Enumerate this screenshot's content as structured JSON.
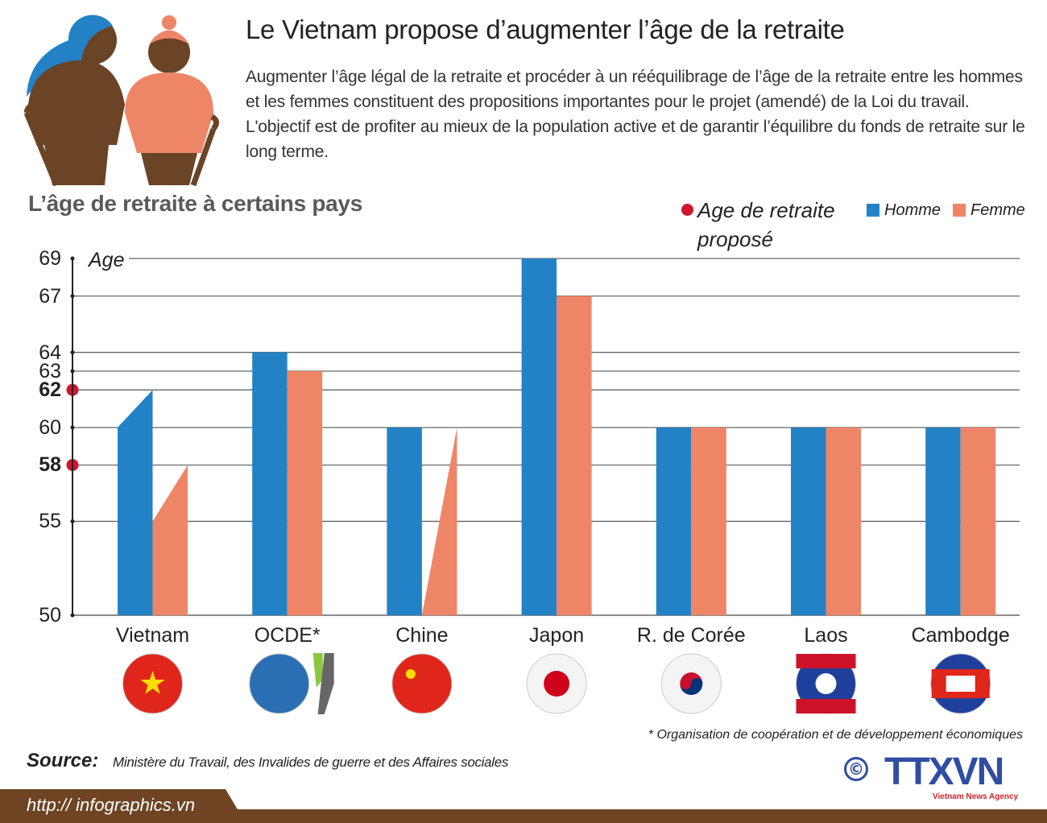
{
  "header": {
    "title": "Le Vietnam propose d’augmenter l’âge de la retraite",
    "intro": "Augmenter l’âge légal de la retraite et procéder à un rééquilibrage de l’âge de la retraite entre les hommes et les femmes constituent des propositions importantes pour le projet (amendé) de la Loi du travail. L'objectif est de profiter au mieux de la population active et de garantir l’équilibre du fonds de retraite sur le long terme."
  },
  "chart_data": {
    "type": "bar",
    "title": "L’âge de retraite à certains pays",
    "ylabel": "Age",
    "ylim": [
      50,
      69
    ],
    "yticks": [
      50,
      55,
      58,
      60,
      62,
      63,
      64,
      67,
      69
    ],
    "highlighted_ticks": [
      58,
      62
    ],
    "grid": true,
    "legend": {
      "proposed": "Age de retraite proposé",
      "placement": "top-right"
    },
    "categories": [
      "Vietnam",
      "OCDE*",
      "Chine",
      "Japon",
      "R. de Corée",
      "Laos",
      "Cambodge"
    ],
    "series": [
      {
        "name": "Homme",
        "color": "#2382c6",
        "values": [
          [
            60,
            62
          ],
          64,
          60,
          69,
          60,
          60,
          60
        ]
      },
      {
        "name": "Femme",
        "color": "#ef8567",
        "values": [
          [
            55,
            58
          ],
          63,
          [
            50,
            60
          ],
          67,
          60,
          60,
          60
        ]
      }
    ],
    "proposed_values": {
      "Homme": 62,
      "Femme": 58
    },
    "proposed_color": "#d2152f"
  },
  "flags": [
    "vietnam-flag",
    "oecd-logo",
    "china-flag",
    "japan-flag",
    "korea-flag",
    "laos-flag",
    "cambodia-flag"
  ],
  "footnote": "* Organisation de coopération et de développement économiques",
  "source": {
    "label": "Source:",
    "text": "Ministère du Travail, des Invalides de guerre et des Affaires sociales"
  },
  "footer": {
    "url": "http:// infographics.vn",
    "copyright": "©",
    "logo": "TTXVN",
    "logo_sub": "Vietnam News Agency"
  }
}
